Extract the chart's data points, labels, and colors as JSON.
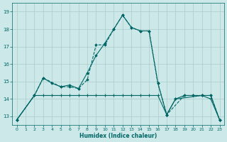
{
  "xlabel": "Humidex (Indice chaleur)",
  "background_color": "#cce8e8",
  "grid_color": "#aacccc",
  "line_color": "#006666",
  "xlim": [
    -0.5,
    23.5
  ],
  "ylim": [
    12.5,
    19.5
  ],
  "yticks": [
    13,
    14,
    15,
    16,
    17,
    18,
    19
  ],
  "xticks": [
    0,
    1,
    2,
    3,
    4,
    5,
    6,
    7,
    8,
    9,
    10,
    11,
    12,
    13,
    14,
    15,
    16,
    17,
    18,
    19,
    20,
    21,
    22,
    23
  ],
  "curve1_x": [
    0,
    2,
    3,
    5,
    6,
    7,
    8,
    9,
    10,
    11,
    12,
    13,
    14,
    15,
    16,
    17,
    19,
    20,
    21,
    22,
    23
  ],
  "curve1_y": [
    12.8,
    14.2,
    15.2,
    14.7,
    14.7,
    14.6,
    15.1,
    17.1,
    17.1,
    18.0,
    18.8,
    18.1,
    17.9,
    17.9,
    14.9,
    13.1,
    14.2,
    14.2,
    14.2,
    14.2,
    12.8
  ],
  "curve2_x": [
    0,
    2,
    3,
    4,
    5,
    6,
    7,
    8,
    9,
    10,
    11,
    12,
    13,
    14,
    15,
    16,
    17,
    18,
    21,
    22,
    23
  ],
  "curve2_y": [
    12.8,
    14.2,
    15.2,
    14.9,
    14.7,
    14.8,
    14.6,
    15.5,
    16.5,
    17.2,
    18.0,
    18.8,
    18.1,
    17.9,
    17.9,
    14.9,
    13.1,
    14.0,
    14.2,
    14.2,
    12.8
  ],
  "curve3_x": [
    0,
    2,
    3,
    4,
    5,
    6,
    7,
    8,
    9,
    10,
    11,
    12,
    13,
    14,
    15,
    16,
    17,
    18,
    19,
    20,
    21,
    22,
    23
  ],
  "curve3_y": [
    12.8,
    14.2,
    14.2,
    14.2,
    14.2,
    14.2,
    14.2,
    14.2,
    14.2,
    14.2,
    14.2,
    14.2,
    14.2,
    14.2,
    14.2,
    14.2,
    13.1,
    14.0,
    14.2,
    14.2,
    14.2,
    14.0,
    12.8
  ]
}
